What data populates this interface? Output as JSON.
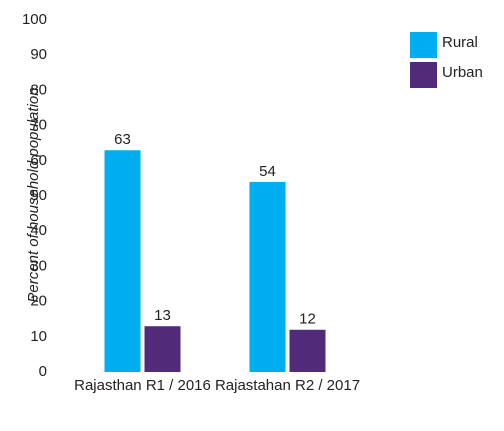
{
  "chart_data": {
    "type": "bar",
    "categories": [
      "Rajasthan R1 / 2016",
      "Rajastahan R2 / 2017"
    ],
    "series": [
      {
        "name": "Rural",
        "color": "#00aeef",
        "values": [
          63,
          54
        ]
      },
      {
        "name": "Urban",
        "color": "#522a7a",
        "values": [
          13,
          12
        ]
      }
    ],
    "ylabel": "Percent of household population",
    "ylim": [
      0,
      100
    ],
    "yticks": [
      0,
      10,
      20,
      30,
      40,
      50,
      60,
      70,
      80,
      90,
      100
    ],
    "grid": false,
    "legend": "upper right"
  }
}
